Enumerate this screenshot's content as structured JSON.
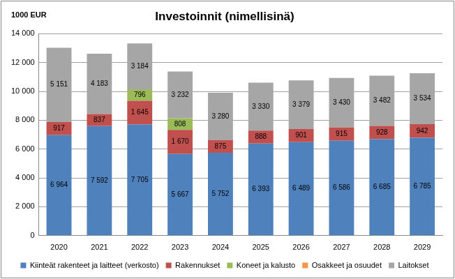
{
  "chart_data": {
    "type": "bar",
    "title": "Investoinnit (nimellisinä)",
    "ylabel": "1000 EUR",
    "categories": [
      "2020",
      "2021",
      "2022",
      "2023",
      "2024",
      "2025",
      "2026",
      "2027",
      "2028",
      "2029"
    ],
    "stacked": true,
    "data_labels": true,
    "grid": true,
    "legend": "bottom",
    "ylim": [
      0,
      14000
    ],
    "yticks": [
      {
        "value": 0,
        "label": "0"
      },
      {
        "value": 2000,
        "label": "2 000"
      },
      {
        "value": 4000,
        "label": "4 000"
      },
      {
        "value": 6000,
        "label": "6 000"
      },
      {
        "value": 8000,
        "label": "8 000"
      },
      {
        "value": 10000,
        "label": "10 000"
      },
      {
        "value": 12000,
        "label": "12 000"
      },
      {
        "value": 14000,
        "label": "14 000"
      }
    ],
    "series": [
      {
        "name": "Kiinteät rakenteet ja laitteet (verkosto)",
        "color": "#4f81bd",
        "values": [
          6964,
          7592,
          7705,
          5667,
          5752,
          6393,
          6489,
          6586,
          6685,
          6785
        ],
        "value_labels": [
          "6 964",
          "7 592",
          "7 705",
          "5 667",
          "5 752",
          "6 393",
          "6 489",
          "6 586",
          "6 685",
          "6 785"
        ]
      },
      {
        "name": "Rakennukset",
        "color": "#c0504d",
        "values": [
          917,
          837,
          1645,
          1670,
          875,
          888,
          901,
          915,
          928,
          942
        ],
        "value_labels": [
          "917",
          "837",
          "1 645",
          "1 670",
          "875",
          "888",
          "901",
          "915",
          "928",
          "942"
        ]
      },
      {
        "name": "Koneet ja kalusto",
        "color": "#9bbb59",
        "values": [
          null,
          null,
          796,
          808,
          null,
          null,
          null,
          null,
          null,
          null
        ],
        "value_labels": [
          null,
          null,
          "796",
          "808",
          null,
          null,
          null,
          null,
          null,
          null
        ]
      },
      {
        "name": "Osakkeet ja osuudet",
        "color": "#f79646",
        "values": [
          null,
          null,
          null,
          null,
          null,
          null,
          null,
          null,
          null,
          null
        ],
        "value_labels": [
          null,
          null,
          null,
          null,
          null,
          null,
          null,
          null,
          null,
          null
        ]
      },
      {
        "name": "Laitokset",
        "color": "#a6a6a6",
        "values": [
          5151,
          4183,
          3184,
          3232,
          3280,
          3330,
          3379,
          3430,
          3482,
          3534
        ],
        "value_labels": [
          "5 151",
          "4 183",
          "3 184",
          "3 232",
          "3 280",
          "3 330",
          "3 379",
          "3 430",
          "3 482",
          "3 534"
        ]
      }
    ]
  }
}
